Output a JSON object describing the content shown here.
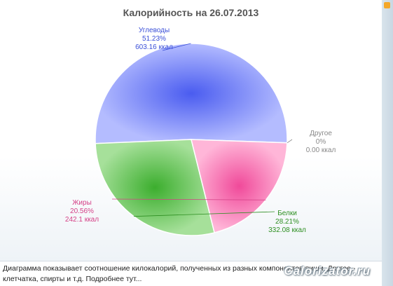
{
  "chart_data": {
    "type": "pie",
    "title": "Калорийность на 26.07.2013",
    "slices": [
      {
        "name": "Углеводы",
        "percent": 51.23,
        "value": 603.16,
        "percent_label": "51.23%",
        "value_label": "603.16 ккал",
        "color": "#4a5cf0"
      },
      {
        "name": "Белки",
        "percent": 28.21,
        "value": 332.08,
        "percent_label": "28.21%",
        "value_label": "332.08 ккал",
        "color": "#3cae2e"
      },
      {
        "name": "Жиры",
        "percent": 20.56,
        "value": 242.1,
        "percent_label": "20.56%",
        "value_label": "242.1 ккал",
        "color": "#f04a9a"
      },
      {
        "name": "Другое",
        "percent": 0,
        "value": 0.0,
        "percent_label": "0%",
        "value_label": "0.00 ккал",
        "color": "#999999"
      }
    ]
  },
  "footer": {
    "text": "Диаграмма показывает соотношение килокалорий, полученных из разных компонентов пищи. Другое - клетчатка, спирты и т.д. Подробнее тут...",
    "watermark": "Calorizator.ru"
  }
}
